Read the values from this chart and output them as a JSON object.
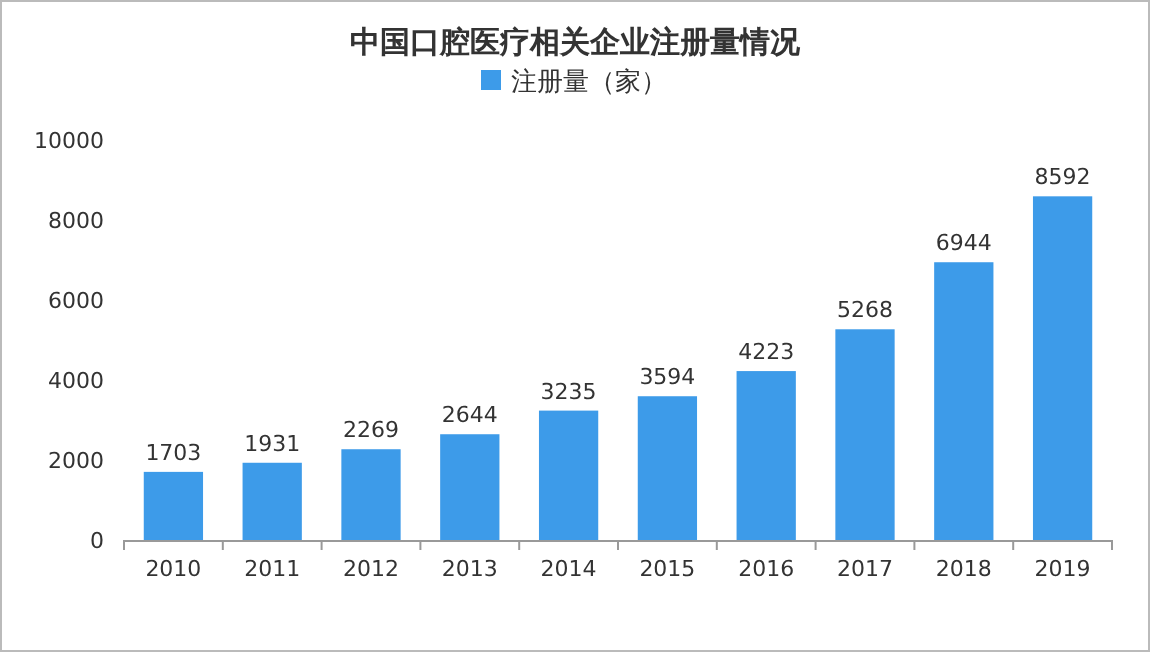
{
  "chart_data": {
    "type": "bar",
    "title": "中国口腔医疗相关企业注册量情况",
    "categories": [
      "2010",
      "2011",
      "2012",
      "2013",
      "2014",
      "2015",
      "2016",
      "2017",
      "2018",
      "2019"
    ],
    "series": [
      {
        "name": "注册量（家）",
        "color": "#3d9be9",
        "values": [
          1703,
          1931,
          2269,
          2644,
          3235,
          3594,
          4223,
          5268,
          6944,
          8592
        ]
      }
    ],
    "ylim": [
      0,
      10000
    ],
    "yticks": [
      0,
      2000,
      4000,
      6000,
      8000,
      10000
    ],
    "data_labels": true,
    "legend": "top",
    "grid": false
  }
}
